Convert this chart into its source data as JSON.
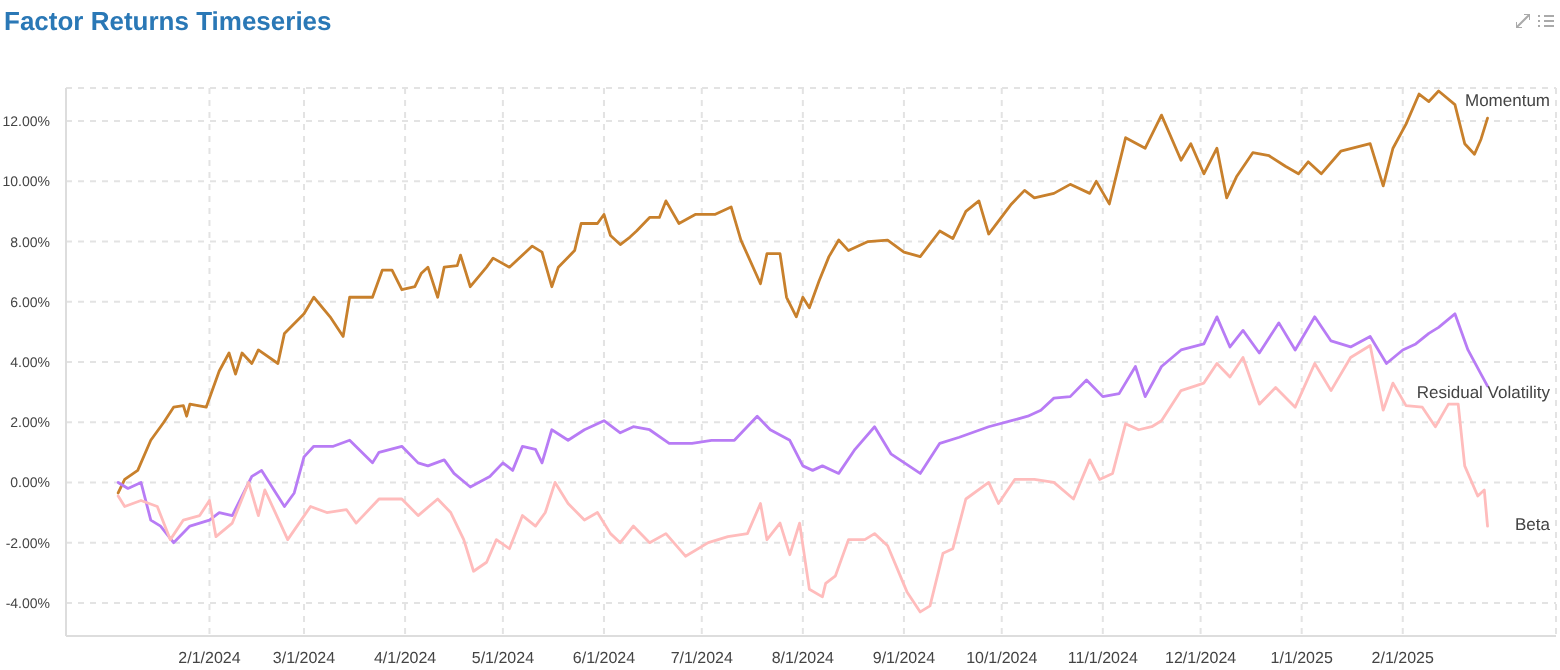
{
  "chart_data": {
    "type": "line",
    "title": "Factor Returns Timeseries",
    "xlim": [
      "2023-12-19",
      "2025-03-20"
    ],
    "xticks": [
      {
        "value": "2024-02-01",
        "label": "2/1/2024"
      },
      {
        "value": "2024-03-01",
        "label": "3/1/2024"
      },
      {
        "value": "2024-04-01",
        "label": "4/1/2024"
      },
      {
        "value": "2024-05-01",
        "label": "5/1/2024"
      },
      {
        "value": "2024-06-01",
        "label": "6/1/2024"
      },
      {
        "value": "2024-07-01",
        "label": "7/1/2024"
      },
      {
        "value": "2024-08-01",
        "label": "8/1/2024"
      },
      {
        "value": "2024-09-01",
        "label": "9/1/2024"
      },
      {
        "value": "2024-10-01",
        "label": "10/1/2024"
      },
      {
        "value": "2024-11-01",
        "label": "11/1/2024"
      },
      {
        "value": "2024-12-01",
        "label": "12/1/2024"
      },
      {
        "value": "2025-01-01",
        "label": "1/1/2025"
      },
      {
        "value": "2025-02-01",
        "label": "2/1/2025"
      }
    ],
    "ylim": [
      -5.1,
      13.1
    ],
    "yticks": [
      {
        "value": -4,
        "label": "-4.00%"
      },
      {
        "value": -2,
        "label": "-2.00%"
      },
      {
        "value": 0,
        "label": "0.00%"
      },
      {
        "value": 2,
        "label": "2.00%"
      },
      {
        "value": 4,
        "label": "4.00%"
      },
      {
        "value": 6,
        "label": "6.00%"
      },
      {
        "value": 8,
        "label": "8.00%"
      },
      {
        "value": 10,
        "label": "10.00%"
      },
      {
        "value": 12,
        "label": "12.00%"
      }
    ],
    "grid": true,
    "legend": false,
    "marker": "none",
    "line_style": "solid",
    "series": [
      {
        "name": "Momentum",
        "color": "#c8802c",
        "x": [
          "2024-01-04",
          "2024-01-06",
          "2024-01-10",
          "2024-01-14",
          "2024-01-18",
          "2024-01-21",
          "2024-01-24",
          "2024-01-25",
          "2024-01-26",
          "2024-01-31",
          "2024-02-04",
          "2024-02-07",
          "2024-02-09",
          "2024-02-11",
          "2024-02-14",
          "2024-02-16",
          "2024-02-22",
          "2024-02-24",
          "2024-03-01",
          "2024-03-04",
          "2024-03-09",
          "2024-03-13",
          "2024-03-15",
          "2024-03-22",
          "2024-03-25",
          "2024-03-28",
          "2024-03-31",
          "2024-04-04",
          "2024-04-06",
          "2024-04-08",
          "2024-04-11",
          "2024-04-13",
          "2024-04-17",
          "2024-04-18",
          "2024-04-21",
          "2024-04-26",
          "2024-04-28",
          "2024-05-03",
          "2024-05-10",
          "2024-05-13",
          "2024-05-16",
          "2024-05-18",
          "2024-05-23",
          "2024-05-25",
          "2024-05-30",
          "2024-06-01",
          "2024-06-03",
          "2024-06-06",
          "2024-06-09",
          "2024-06-11",
          "2024-06-15",
          "2024-06-18",
          "2024-06-20",
          "2024-06-24",
          "2024-06-29",
          "2024-07-05",
          "2024-07-10",
          "2024-07-13",
          "2024-07-19",
          "2024-07-21",
          "2024-07-25",
          "2024-07-27",
          "2024-07-30",
          "2024-08-01",
          "2024-08-03",
          "2024-08-06",
          "2024-08-09",
          "2024-08-12",
          "2024-08-15",
          "2024-08-21",
          "2024-08-27",
          "2024-09-01",
          "2024-09-06",
          "2024-09-12",
          "2024-09-16",
          "2024-09-20",
          "2024-09-24",
          "2024-09-27",
          "2024-10-04",
          "2024-10-08",
          "2024-10-11",
          "2024-10-17",
          "2024-10-22",
          "2024-10-28",
          "2024-10-30",
          "2024-11-03",
          "2024-11-08",
          "2024-11-14",
          "2024-11-19",
          "2024-11-25",
          "2024-11-28",
          "2024-12-02",
          "2024-12-06",
          "2024-12-09",
          "2024-12-12",
          "2024-12-17",
          "2024-12-22",
          "2024-12-27",
          "2024-12-31",
          "2025-01-03",
          "2025-01-07",
          "2025-01-13",
          "2025-01-22",
          "2025-01-26",
          "2025-01-29",
          "2025-02-02",
          "2025-02-06",
          "2025-02-09",
          "2025-02-12",
          "2025-02-17",
          "2025-02-20",
          "2025-02-23",
          "2025-02-25",
          "2025-02-27"
        ],
        "values": [
          -0.35,
          0.1,
          0.4,
          1.4,
          2.0,
          2.5,
          2.55,
          2.2,
          2.6,
          2.5,
          3.7,
          4.3,
          3.6,
          4.3,
          3.95,
          4.4,
          3.95,
          4.95,
          5.6,
          6.15,
          5.5,
          4.85,
          6.15,
          6.15,
          7.05,
          7.05,
          6.4,
          6.5,
          6.95,
          7.15,
          6.15,
          7.15,
          7.2,
          7.55,
          6.5,
          7.15,
          7.45,
          7.15,
          7.85,
          7.65,
          6.5,
          7.15,
          7.7,
          8.6,
          8.6,
          8.9,
          8.2,
          7.9,
          8.15,
          8.35,
          8.8,
          8.8,
          9.35,
          8.6,
          8.9,
          8.9,
          9.15,
          8.05,
          6.6,
          7.6,
          7.6,
          6.15,
          5.5,
          6.15,
          5.8,
          6.7,
          7.5,
          8.05,
          7.7,
          8.0,
          8.05,
          7.65,
          7.5,
          8.35,
          8.1,
          9.0,
          9.35,
          8.25,
          9.25,
          9.7,
          9.45,
          9.6,
          9.9,
          9.6,
          10.0,
          9.25,
          11.45,
          11.1,
          12.2,
          10.7,
          11.25,
          10.25,
          11.1,
          9.45,
          10.15,
          10.95,
          10.85,
          10.5,
          10.25,
          10.65,
          10.25,
          11.0,
          11.25,
          9.85,
          11.1,
          11.9,
          12.9,
          12.65,
          13.0,
          12.55,
          11.25,
          10.9,
          11.4,
          12.1
        ]
      },
      {
        "name": "Residual Volatility",
        "color": "#b87cf5",
        "x": [
          "2024-01-04",
          "2024-01-07",
          "2024-01-11",
          "2024-01-14",
          "2024-01-17",
          "2024-01-21",
          "2024-01-26",
          "2024-02-01",
          "2024-02-04",
          "2024-02-08",
          "2024-02-14",
          "2024-02-17",
          "2024-02-24",
          "2024-02-27",
          "2024-03-01",
          "2024-03-04",
          "2024-03-10",
          "2024-03-15",
          "2024-03-22",
          "2024-03-24",
          "2024-03-31",
          "2024-04-05",
          "2024-04-08",
          "2024-04-13",
          "2024-04-16",
          "2024-04-21",
          "2024-04-27",
          "2024-05-01",
          "2024-05-04",
          "2024-05-07",
          "2024-05-11",
          "2024-05-13",
          "2024-05-16",
          "2024-05-21",
          "2024-05-26",
          "2024-06-01",
          "2024-06-06",
          "2024-06-10",
          "2024-06-15",
          "2024-06-21",
          "2024-06-28",
          "2024-07-04",
          "2024-07-11",
          "2024-07-18",
          "2024-07-22",
          "2024-07-28",
          "2024-08-01",
          "2024-08-04",
          "2024-08-07",
          "2024-08-12",
          "2024-08-17",
          "2024-08-23",
          "2024-08-28",
          "2024-09-06",
          "2024-09-12",
          "2024-09-18",
          "2024-09-27",
          "2024-10-04",
          "2024-10-09",
          "2024-10-13",
          "2024-10-17",
          "2024-10-22",
          "2024-10-27",
          "2024-11-01",
          "2024-11-06",
          "2024-11-11",
          "2024-11-14",
          "2024-11-19",
          "2024-11-25",
          "2024-12-02",
          "2024-12-06",
          "2024-12-10",
          "2024-12-14",
          "2024-12-19",
          "2024-12-25",
          "2024-12-30",
          "2025-01-05",
          "2025-01-10",
          "2025-01-16",
          "2025-01-22",
          "2025-01-27",
          "2025-02-01",
          "2025-02-05",
          "2025-02-09",
          "2025-02-12",
          "2025-02-17",
          "2025-02-21",
          "2025-02-25",
          "2025-02-27"
        ],
        "values": [
          0.0,
          -0.2,
          0.0,
          -1.25,
          -1.45,
          -2.0,
          -1.45,
          -1.25,
          -1.0,
          -1.1,
          0.2,
          0.4,
          -0.8,
          -0.35,
          0.85,
          1.2,
          1.2,
          1.4,
          0.65,
          1.0,
          1.2,
          0.65,
          0.55,
          0.75,
          0.3,
          -0.15,
          0.2,
          0.65,
          0.4,
          1.2,
          1.1,
          0.65,
          1.75,
          1.4,
          1.75,
          2.05,
          1.65,
          1.85,
          1.75,
          1.3,
          1.3,
          1.4,
          1.4,
          2.2,
          1.75,
          1.4,
          0.55,
          0.4,
          0.55,
          0.3,
          1.1,
          1.85,
          0.95,
          0.3,
          1.3,
          1.5,
          1.85,
          2.05,
          2.2,
          2.4,
          2.8,
          2.85,
          3.4,
          2.85,
          2.95,
          3.85,
          2.85,
          3.85,
          4.4,
          4.6,
          5.5,
          4.5,
          5.05,
          4.3,
          5.3,
          4.4,
          5.5,
          4.7,
          4.5,
          4.85,
          3.95,
          4.4,
          4.6,
          4.95,
          5.15,
          5.6,
          4.4,
          3.6,
          3.2
        ]
      },
      {
        "name": "Beta",
        "color": "#ffbcbc",
        "x": [
          "2024-01-04",
          "2024-01-06",
          "2024-01-11",
          "2024-01-16",
          "2024-01-20",
          "2024-01-24",
          "2024-01-29",
          "2024-02-01",
          "2024-02-03",
          "2024-02-08",
          "2024-02-13",
          "2024-02-16",
          "2024-02-18",
          "2024-02-25",
          "2024-03-03",
          "2024-03-08",
          "2024-03-14",
          "2024-03-17",
          "2024-03-24",
          "2024-03-31",
          "2024-04-05",
          "2024-04-11",
          "2024-04-15",
          "2024-04-19",
          "2024-04-22",
          "2024-04-26",
          "2024-04-29",
          "2024-05-03",
          "2024-05-07",
          "2024-05-11",
          "2024-05-14",
          "2024-05-17",
          "2024-05-21",
          "2024-05-26",
          "2024-05-30",
          "2024-06-03",
          "2024-06-06",
          "2024-06-10",
          "2024-06-15",
          "2024-06-20",
          "2024-06-26",
          "2024-07-03",
          "2024-07-09",
          "2024-07-15",
          "2024-07-19",
          "2024-07-21",
          "2024-07-25",
          "2024-07-28",
          "2024-07-31",
          "2024-08-03",
          "2024-08-07",
          "2024-08-08",
          "2024-08-11",
          "2024-08-15",
          "2024-08-20",
          "2024-08-23",
          "2024-08-27",
          "2024-09-02",
          "2024-09-06",
          "2024-09-09",
          "2024-09-13",
          "2024-09-16",
          "2024-09-20",
          "2024-09-27",
          "2024-09-30",
          "2024-10-05",
          "2024-10-11",
          "2024-10-17",
          "2024-10-23",
          "2024-10-28",
          "2024-10-31",
          "2024-11-04",
          "2024-11-08",
          "2024-11-12",
          "2024-11-16",
          "2024-11-19",
          "2024-11-25",
          "2024-12-02",
          "2024-12-06",
          "2024-12-10",
          "2024-12-14",
          "2024-12-19",
          "2024-12-24",
          "2024-12-30",
          "2025-01-05",
          "2025-01-10",
          "2025-01-16",
          "2025-01-22",
          "2025-01-26",
          "2025-01-29",
          "2025-02-02",
          "2025-02-07",
          "2025-02-11",
          "2025-02-15",
          "2025-02-18",
          "2025-02-20",
          "2025-02-24",
          "2025-02-26",
          "2025-02-27"
        ],
        "values": [
          -0.45,
          -0.8,
          -0.6,
          -0.8,
          -1.9,
          -1.25,
          -1.1,
          -0.6,
          -1.8,
          -1.35,
          0.0,
          -1.1,
          -0.25,
          -1.9,
          -0.8,
          -1.0,
          -0.9,
          -1.35,
          -0.55,
          -0.55,
          -1.1,
          -0.55,
          -1.0,
          -1.9,
          -2.95,
          -2.65,
          -1.9,
          -2.2,
          -1.1,
          -1.45,
          -1.0,
          0.0,
          -0.7,
          -1.25,
          -1.0,
          -1.7,
          -2.0,
          -1.45,
          -2.0,
          -1.7,
          -2.45,
          -2.0,
          -1.8,
          -1.7,
          -0.7,
          -1.9,
          -1.35,
          -2.4,
          -1.35,
          -3.55,
          -3.8,
          -3.35,
          -3.1,
          -1.9,
          -1.9,
          -1.7,
          -2.1,
          -3.65,
          -4.3,
          -4.1,
          -2.35,
          -2.2,
          -0.55,
          0.0,
          -0.7,
          0.1,
          0.1,
          0.0,
          -0.55,
          0.75,
          0.1,
          0.3,
          1.95,
          1.75,
          1.85,
          2.05,
          3.05,
          3.3,
          3.95,
          3.5,
          4.15,
          2.6,
          3.15,
          2.5,
          3.95,
          3.05,
          4.15,
          4.55,
          2.4,
          3.3,
          2.55,
          2.5,
          1.85,
          2.6,
          2.6,
          0.55,
          -0.45,
          -0.25,
          -1.45
        ]
      }
    ]
  }
}
